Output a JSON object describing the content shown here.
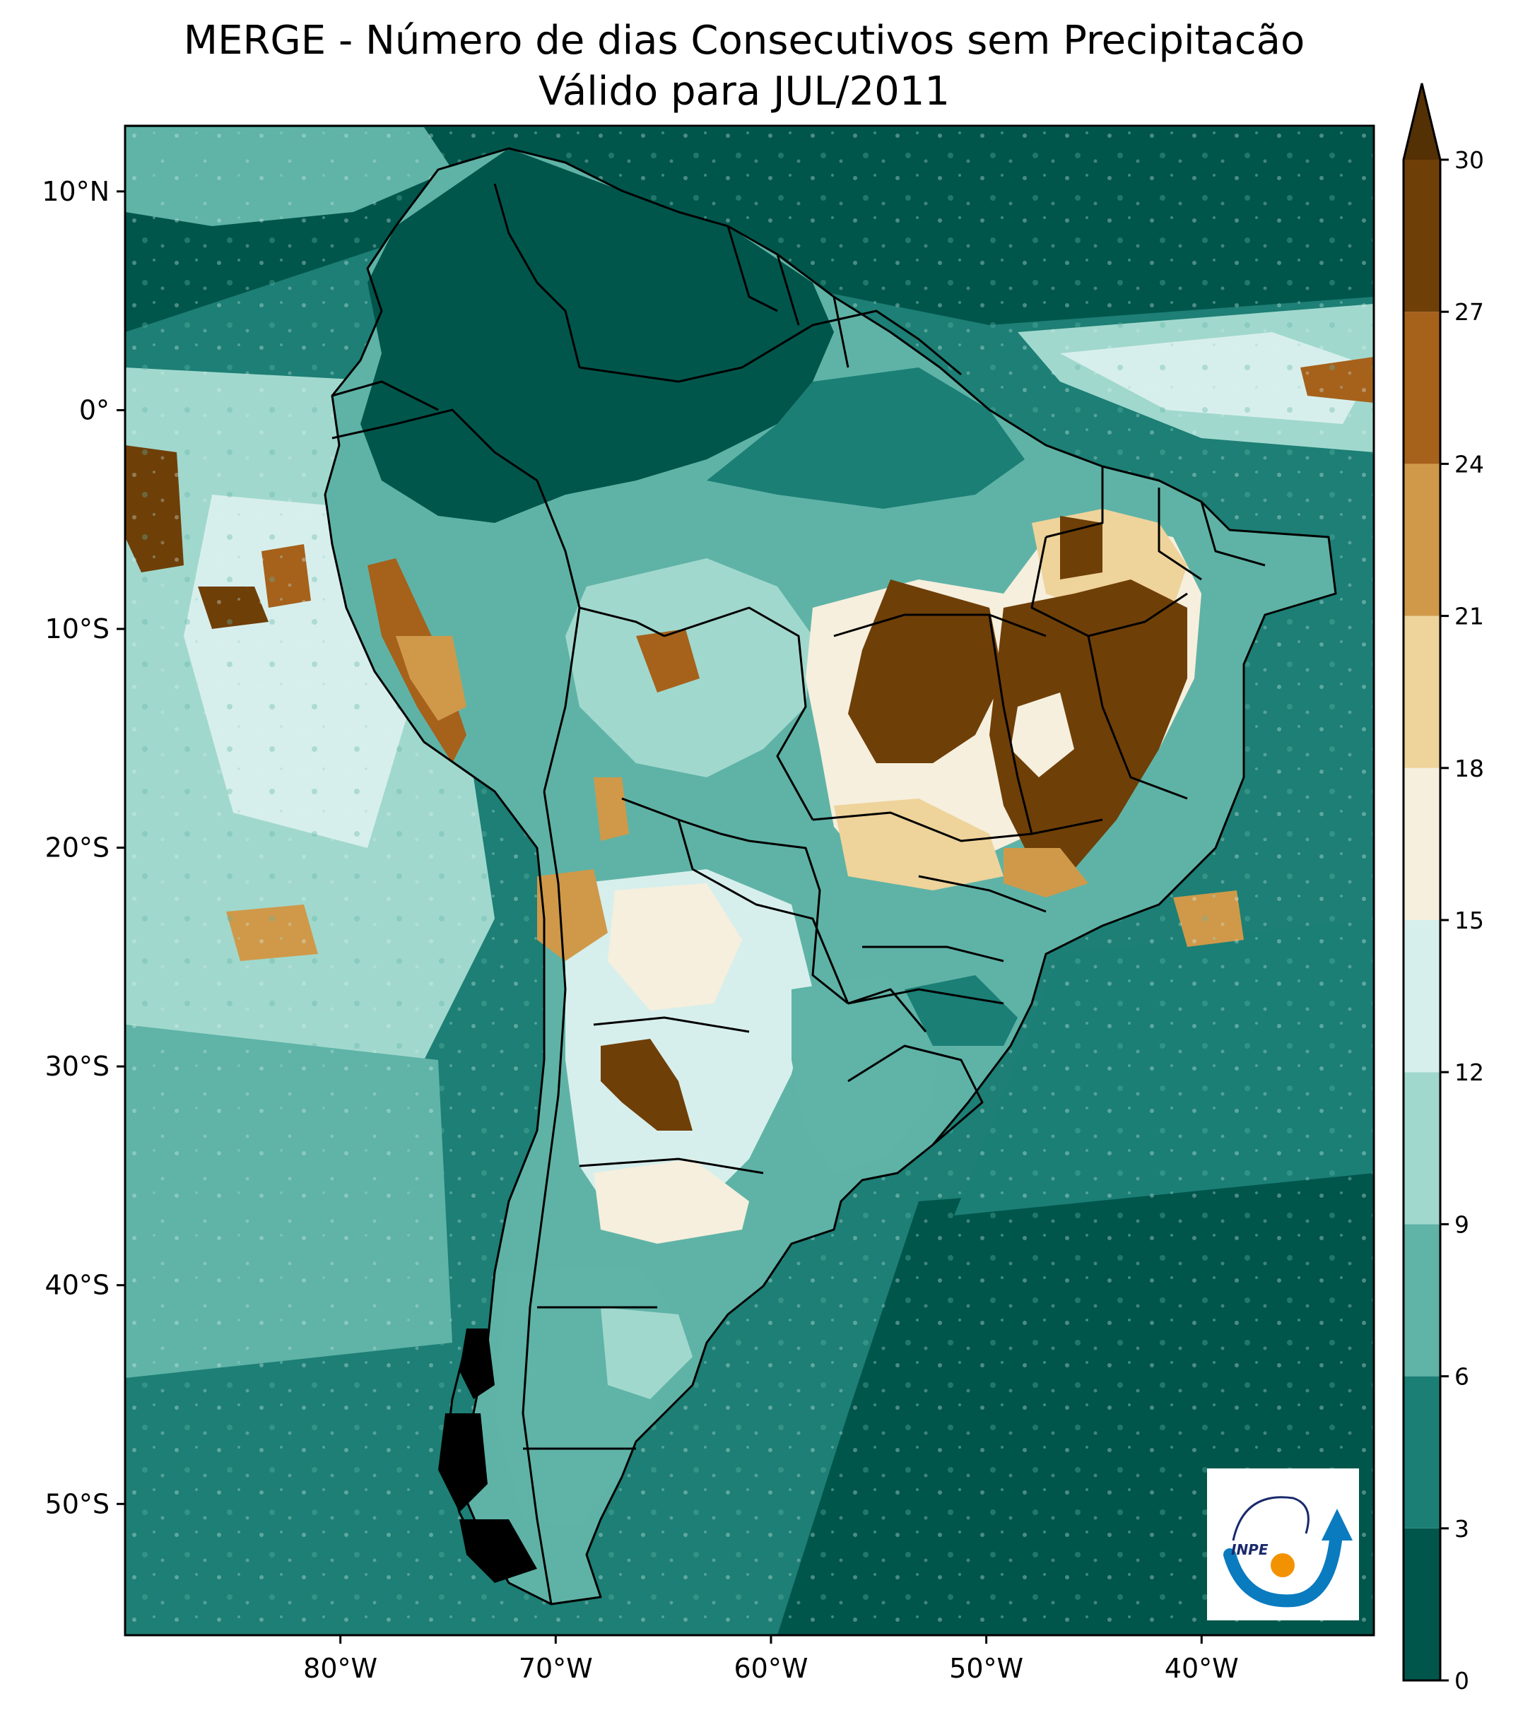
{
  "title": {
    "line1": "MERGE - Número de dias Consecutivos sem Precipitacão",
    "line2": "Válido para JUL/2011"
  },
  "map": {
    "lon_range": [
      -90,
      -32
    ],
    "lat_range": [
      -56,
      13
    ],
    "ocean_color": "#1d7f75",
    "land_color": "#5fb3a6",
    "border_color": "#000000",
    "x_ticks": [
      {
        "value": -80,
        "label": "80°W"
      },
      {
        "value": -70,
        "label": "70°W"
      },
      {
        "value": -60,
        "label": "60°W"
      },
      {
        "value": -50,
        "label": "50°W"
      },
      {
        "value": -40,
        "label": "40°W"
      }
    ],
    "y_ticks": [
      {
        "value": 10,
        "label": "10°N"
      },
      {
        "value": 0,
        "label": "0°"
      },
      {
        "value": -10,
        "label": "10°S"
      },
      {
        "value": -20,
        "label": "20°S"
      },
      {
        "value": -30,
        "label": "30°S"
      },
      {
        "value": -40,
        "label": "40°S"
      },
      {
        "value": -50,
        "label": "50°S"
      }
    ]
  },
  "colorbar": {
    "levels": [
      0,
      3,
      6,
      9,
      12,
      15,
      18,
      21,
      24,
      27,
      30
    ],
    "labels": [
      "0",
      "3",
      "6",
      "9",
      "12",
      "15",
      "18",
      "21",
      "24",
      "27",
      "30"
    ],
    "colors": [
      "#01564c",
      "#1b7f76",
      "#5fb3a7",
      "#a1d8cd",
      "#d7efec",
      "#f6efdd",
      "#eed39a",
      "#cf9949",
      "#a6611b",
      "#6f3f08"
    ],
    "extend_color": "#543005",
    "extend": "max"
  },
  "logo": {
    "text": "INPE",
    "icon": "inpe-logo-icon",
    "arc_color": "#0a7bbf",
    "dot_color": "#f39200"
  }
}
